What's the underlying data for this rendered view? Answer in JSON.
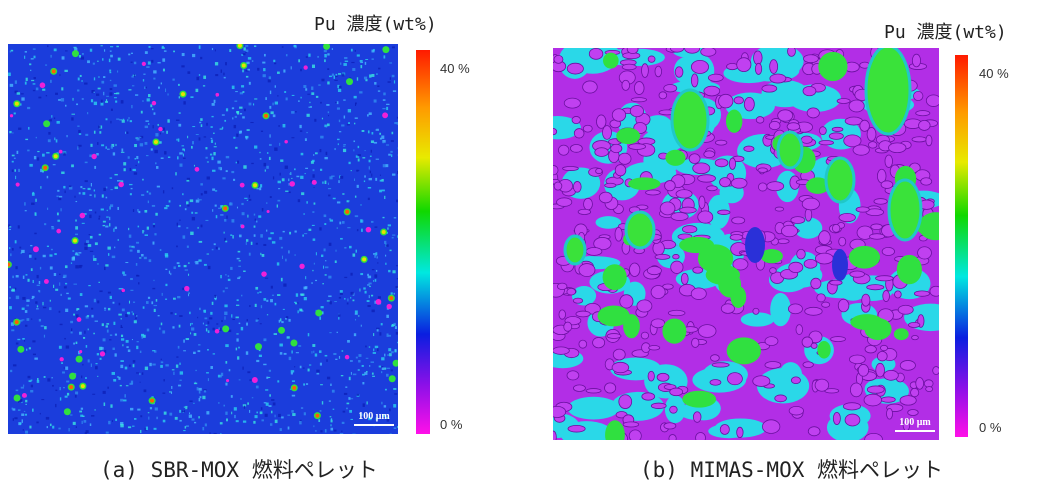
{
  "panels": [
    {
      "colorbar_title": "Pu 濃度(wt%)",
      "colorbar_max": "40 %",
      "colorbar_min": "0 %",
      "scale_bar": "100 μm",
      "caption": "(a) SBR-MOX 燃料ペレット"
    },
    {
      "colorbar_title": "Pu 濃度(wt%)",
      "colorbar_max": "40 %",
      "colorbar_min": "0 %",
      "scale_bar": "100 μm",
      "caption": "(b) MIMAS-MOX 燃料ペレット"
    }
  ]
}
